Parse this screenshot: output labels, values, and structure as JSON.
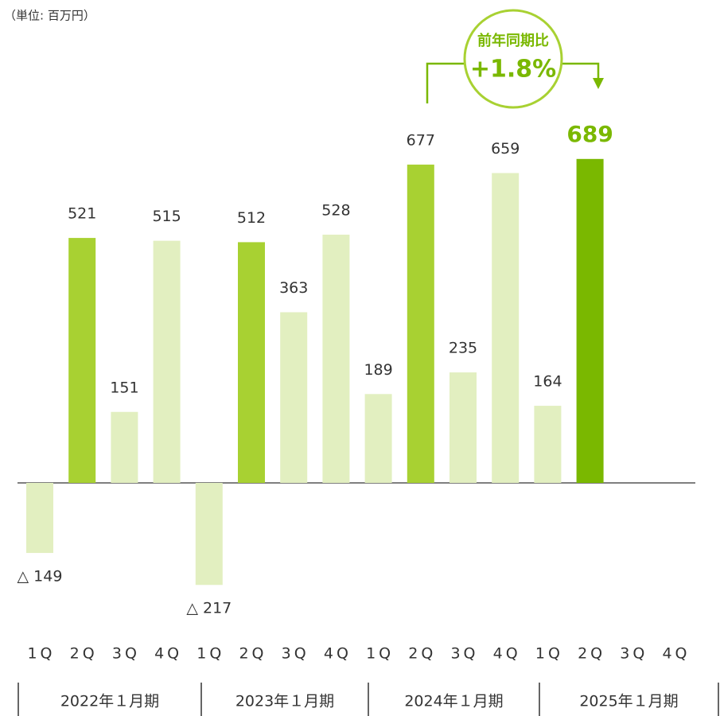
{
  "chart_data": {
    "type": "bar",
    "unit_label": "（単位: 百万円）",
    "categories": [
      "1Q",
      "2Q",
      "3Q",
      "4Q",
      "1Q",
      "2Q",
      "3Q",
      "4Q",
      "1Q",
      "2Q",
      "3Q",
      "4Q",
      "1Q",
      "2Q",
      "3Q",
      "4Q"
    ],
    "groups": [
      "2022年１月期",
      "2023年１月期",
      "2024年１月期",
      "2025年１月期"
    ],
    "values": [
      -149,
      521,
      151,
      515,
      -217,
      512,
      363,
      528,
      189,
      677,
      235,
      659,
      164,
      689,
      null,
      null
    ],
    "value_labels": [
      "△ 149",
      "521",
      "151",
      "515",
      "△ 217",
      "512",
      "363",
      "528",
      "189",
      "677",
      "235",
      "659",
      "164",
      "689",
      null,
      null
    ],
    "colors": [
      "#e2efc0",
      "#a8d132",
      "#e2efc0",
      "#e2efc0",
      "#e2efc0",
      "#a8d132",
      "#e2efc0",
      "#e2efc0",
      "#e2efc0",
      "#a8d132",
      "#e2efc0",
      "#e2efc0",
      "#e2efc0",
      "#7ab800",
      "#e2efc0",
      "#e2efc0"
    ],
    "highlight_index": 13,
    "highlight_color": "#7ab800",
    "annotation": {
      "label": "前年同期比",
      "change": "+1.8%"
    }
  }
}
